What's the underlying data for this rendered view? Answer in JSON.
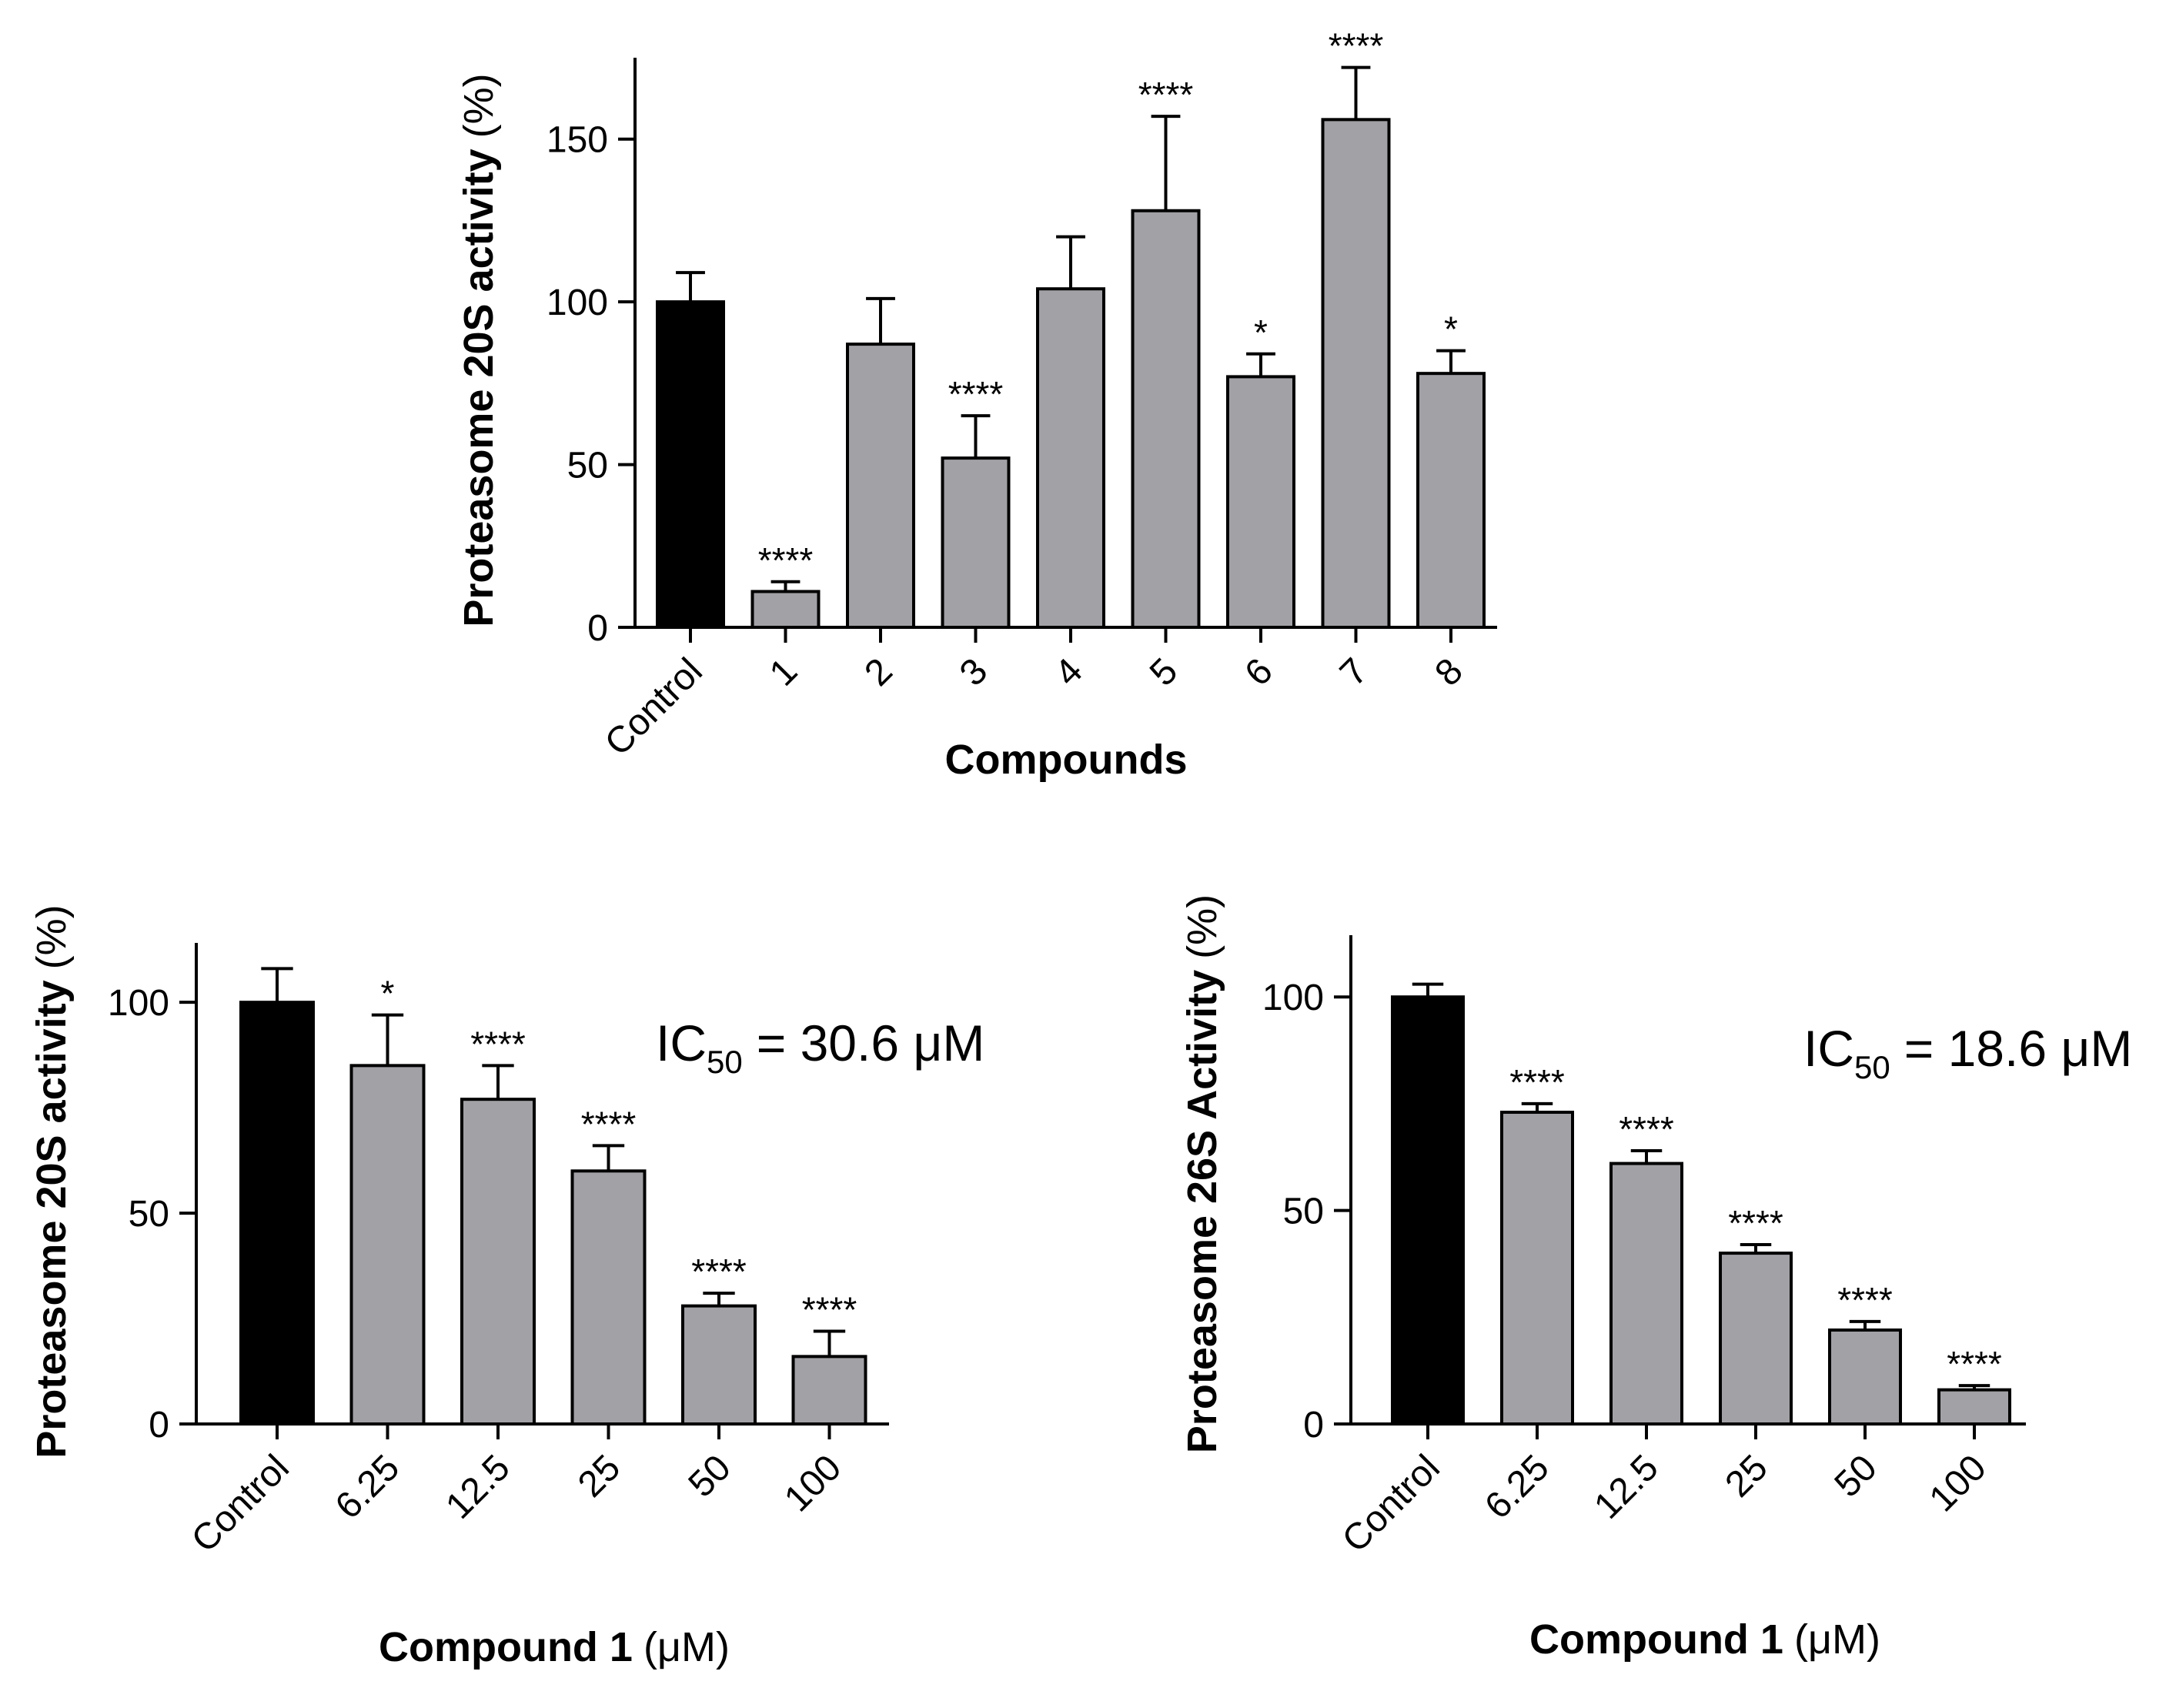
{
  "colors": {
    "control": "#000000",
    "treated": "#a1a1a6",
    "stroke": "#000000"
  },
  "chart_data": [
    {
      "type": "bar",
      "id": "chart-top",
      "categories": [
        "Control",
        "1",
        "2",
        "3",
        "4",
        "5",
        "6",
        "7",
        "8"
      ],
      "values": [
        100,
        11,
        87,
        52,
        104,
        128,
        77,
        156,
        78
      ],
      "errors": [
        9,
        3,
        14,
        13,
        16,
        29,
        7,
        16,
        7
      ],
      "significance": [
        "",
        "****",
        "",
        "****",
        "",
        "****",
        "*",
        "****",
        "*"
      ],
      "ylabel_bold": "Proteasome 20S activity",
      "ylabel_normal": "(%)",
      "xlabel_bold": "Compounds",
      "xlabel_normal": "",
      "yticks": [
        0,
        50,
        100,
        150
      ],
      "ylim": [
        0,
        175
      ],
      "ic50_prefix": "",
      "ic50_sub": "",
      "ic50_value": ""
    },
    {
      "type": "bar",
      "id": "chart-bottom-left",
      "categories": [
        "Control",
        "6.25",
        "12.5",
        "25",
        "50",
        "100"
      ],
      "values": [
        100,
        85,
        77,
        60,
        28,
        16
      ],
      "errors": [
        8,
        12,
        8,
        6,
        3,
        6
      ],
      "significance": [
        "",
        "*",
        "****",
        "****",
        "****",
        "****"
      ],
      "ylabel_bold": "Proteasome 20S activity",
      "ylabel_normal": "(%)",
      "xlabel_bold": "Compound 1",
      "xlabel_normal": "(μM)",
      "yticks": [
        0,
        50,
        100
      ],
      "ylim": [
        0,
        115
      ],
      "ic50_prefix": "IC",
      "ic50_sub": "50",
      "ic50_value": "= 30.6 μM"
    },
    {
      "type": "bar",
      "id": "chart-bottom-right",
      "categories": [
        "Control",
        "6.25",
        "12.5",
        "25",
        "50",
        "100"
      ],
      "values": [
        100,
        73,
        61,
        40,
        22,
        8
      ],
      "errors": [
        3,
        2,
        3,
        2,
        2,
        1
      ],
      "significance": [
        "",
        "****",
        "****",
        "****",
        "****",
        "****"
      ],
      "ylabel_bold": "Proteasome 26S Activity",
      "ylabel_normal": "(%)",
      "xlabel_bold": "Compound 1",
      "xlabel_normal": "(μM)",
      "yticks": [
        0,
        50,
        100
      ],
      "ylim": [
        0,
        115
      ],
      "ic50_prefix": "IC",
      "ic50_sub": "50",
      "ic50_value": "= 18.6 μM"
    }
  ]
}
